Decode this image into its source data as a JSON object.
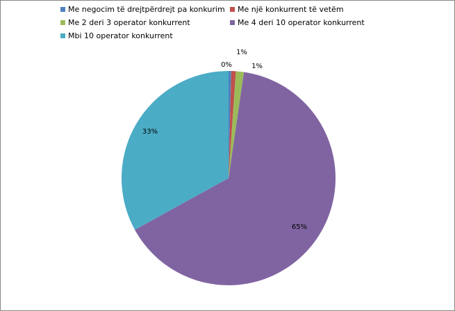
{
  "chart_data": {
    "type": "pie",
    "categories": [
      "Me negocim të drejtpërdrejt pa konkurim",
      "Me një konkurrent të vetëm",
      "Me 2 deri 3 operator konkurrent",
      "Me 4 deri 10 operator konkurrent",
      "Mbi 10 operator konkurrent"
    ],
    "values": [
      0.4,
      0.7,
      1.2,
      64.7,
      33.0
    ],
    "data_labels": [
      "0%",
      "1%",
      "1%",
      "65%",
      "33%"
    ],
    "colors": [
      "#4F81BD",
      "#C0504D",
      "#9BBB59",
      "#8064A2",
      "#4BACC6"
    ],
    "title": "",
    "legend_position": "top"
  }
}
